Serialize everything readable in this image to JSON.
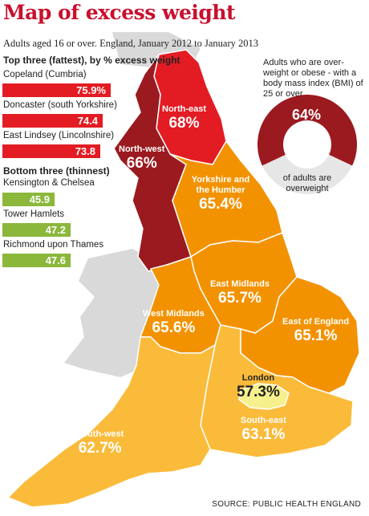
{
  "title": "Map of excess weight",
  "subtitle": "Adults aged 16 or over. England, January 2012 to January 2013",
  "top_three": {
    "heading": "Top three (fattest), by % excess weight",
    "items": [
      {
        "name": "Copeland (Cumbria)",
        "value": "75.9%"
      },
      {
        "name": "Doncaster (south Yorkshire)",
        "value": "74.4"
      },
      {
        "name": "East Lindsey (Lincolnshire)",
        "value": "73.8"
      }
    ]
  },
  "bottom_three": {
    "heading": "Bottom three (thinnest)",
    "items": [
      {
        "name": "Kensington & Chelsea",
        "value": "45.9"
      },
      {
        "name": "Tower Hamlets",
        "value": "47.2"
      },
      {
        "name": "Richmond upon Thames",
        "value": "47.6"
      }
    ]
  },
  "regions": [
    {
      "key": "north_east",
      "name": "North-east",
      "value": "68%",
      "color": "#e31c23"
    },
    {
      "key": "north_west",
      "name": "North-west",
      "value": "66%",
      "color": "#9b1a1f"
    },
    {
      "key": "yorkshire",
      "name": "Yorkshire and the Humber",
      "value": "65.4%",
      "color": "#f39200"
    },
    {
      "key": "east_midlands",
      "name": "East Midlands",
      "value": "65.7%",
      "color": "#f39200"
    },
    {
      "key": "west_midlands",
      "name": "West Midlands",
      "value": "65.6%",
      "color": "#f39200"
    },
    {
      "key": "east_of_england",
      "name": "East of England",
      "value": "65.1%",
      "color": "#f39200"
    },
    {
      "key": "london",
      "name": "London",
      "value": "57.3%",
      "color": "#f7f08c"
    },
    {
      "key": "south_east",
      "name": "South-east",
      "value": "63.1%",
      "color": "#fbbb3a"
    },
    {
      "key": "south_west",
      "name": "South-west",
      "value": "62.7%",
      "color": "#fbbb3a"
    }
  ],
  "inset": {
    "description": "Adults who are over-weight or obese - with a body mass index (BMI) of 25 or over",
    "percent": "64%",
    "fraction": 0.64,
    "caption": "of adults are overweight",
    "color_main": "#9b1a1f",
    "color_rest": "#e6e6e6"
  },
  "source": "SOURCE: PUBLIC HEALTH ENGLAND",
  "colors": {
    "title": "#c8102e",
    "land": "#d9d9d9",
    "top_bar": "#e31c23",
    "bottom_bar": "#8bb73b"
  }
}
